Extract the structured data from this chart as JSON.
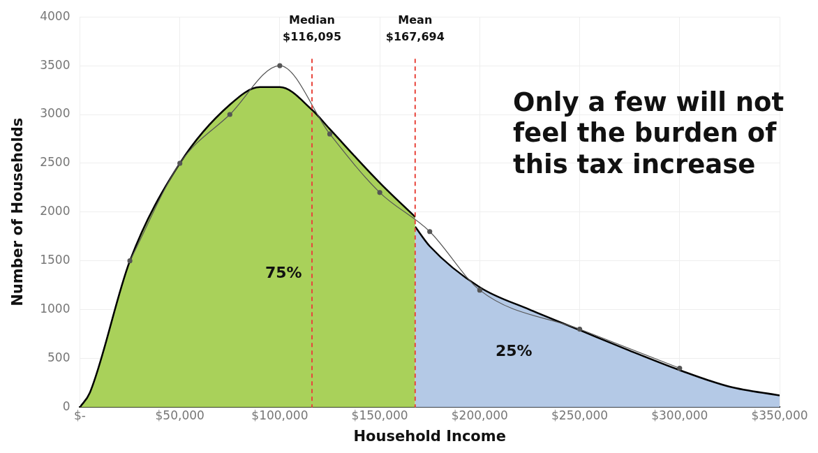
{
  "chart_data": {
    "type": "area",
    "xlabel": "Household Income",
    "ylabel": "Number of Households",
    "xlim": [
      0,
      350000
    ],
    "ylim": [
      0,
      4000
    ],
    "xticks": [
      {
        "value": 0,
        "label": "$-"
      },
      {
        "value": 50000,
        "label": "$50,000"
      },
      {
        "value": 100000,
        "label": "$100,000"
      },
      {
        "value": 150000,
        "label": "$150,000"
      },
      {
        "value": 200000,
        "label": "$200,000"
      },
      {
        "value": 250000,
        "label": "$250,000"
      },
      {
        "value": 300000,
        "label": "$300,000"
      },
      {
        "value": 350000,
        "label": "$350,000"
      }
    ],
    "yticks": [
      0,
      500,
      1000,
      1500,
      2000,
      2500,
      3000,
      3500,
      4000
    ],
    "grid": true,
    "legend": false,
    "series": [
      {
        "color": "#a9d15a",
        "x": [
          0,
          5000,
          25000,
          50000,
          75000,
          90000,
          100000,
          116000,
          125000,
          150000,
          167694
        ],
        "values": [
          0,
          150,
          1500,
          2500,
          3100,
          3280,
          3280,
          3050,
          2850,
          2300,
          1950
        ]
      },
      {
        "color": "#b4c9e6",
        "x": [
          167694,
          175000,
          200000,
          225000,
          250000,
          275000,
          300000,
          325000,
          350000
        ],
        "values": [
          1850,
          1650,
          1230,
          1000,
          790,
          580,
          380,
          210,
          120
        ]
      },
      {
        "type": "line",
        "color": "#555555",
        "marker": "circle",
        "x": [
          25000,
          50000,
          75000,
          100000,
          125000,
          150000,
          175000,
          200000,
          250000,
          300000
        ],
        "values": [
          1500,
          2500,
          3000,
          3500,
          2800,
          2200,
          1800,
          1200,
          800,
          400
        ]
      }
    ],
    "ref_lines": [
      {
        "axis": "x",
        "value": 116095,
        "label": "Median $116,095",
        "color": "#e8453c",
        "line_style": "dashed"
      },
      {
        "axis": "x",
        "value": 167694,
        "label": "Mean $167,694",
        "color": "#e8453c",
        "line_style": "dashed"
      }
    ],
    "annotations": [
      "75%",
      "25%",
      "Only a few will not feel the burden of this tax increase"
    ]
  }
}
